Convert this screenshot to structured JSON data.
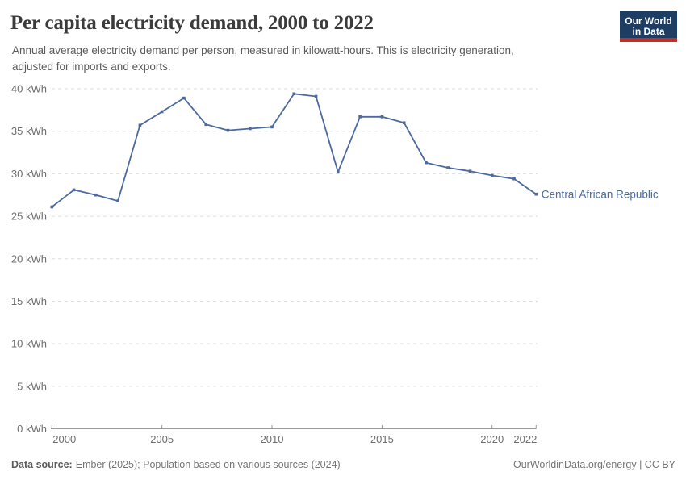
{
  "header": {
    "title": "Per capita electricity demand, 2000 to 2022",
    "subtitle_line1": "Annual average electricity demand per person, measured in kilowatt-hours. This is electricity generation,",
    "subtitle_line2": "adjusted for imports and exports."
  },
  "logo": {
    "line1": "Our World",
    "line2": "in Data",
    "bg_color": "#1d3d63",
    "red_color": "#bc3228"
  },
  "chart_data": {
    "type": "line",
    "title": "Per capita electricity demand, 2000 to 2022",
    "unit": "kWh",
    "x": [
      2000,
      2001,
      2002,
      2003,
      2004,
      2005,
      2006,
      2007,
      2008,
      2009,
      2010,
      2011,
      2012,
      2013,
      2014,
      2015,
      2016,
      2017,
      2018,
      2019,
      2020,
      2021,
      2022
    ],
    "series": [
      {
        "name": "Central African Republic",
        "color": "#4c6a9c",
        "values": [
          26.1,
          28.1,
          27.5,
          26.8,
          35.7,
          37.3,
          38.9,
          35.8,
          35.1,
          35.3,
          35.5,
          39.4,
          39.1,
          30.2,
          36.7,
          36.7,
          36.0,
          31.3,
          30.7,
          30.3,
          29.8,
          29.4,
          27.6
        ]
      }
    ],
    "ylim": [
      0,
      40
    ],
    "ytick_step": 5,
    "ytick_labels": [
      "0 kWh",
      "5 kWh",
      "10 kWh",
      "15 kWh",
      "20 kWh",
      "25 kWh",
      "30 kWh",
      "35 kWh",
      "40 kWh"
    ],
    "xtick_years": [
      2000,
      2005,
      2010,
      2015,
      2020,
      2022
    ],
    "xtick_labels": [
      "2000",
      "2005",
      "2010",
      "2015",
      "2020",
      "2022"
    ],
    "grid": "horizontal-dashed",
    "legend_position": "end-of-line-label",
    "colors": {
      "gridline": "#dddddd",
      "axis_line": "#999999",
      "tick_label": "#6e6e6e"
    }
  },
  "footer": {
    "source_label": "Data source:",
    "source_text": "Ember (2025); Population based on various sources (2024)",
    "right_text": "OurWorldinData.org/energy | CC BY"
  }
}
